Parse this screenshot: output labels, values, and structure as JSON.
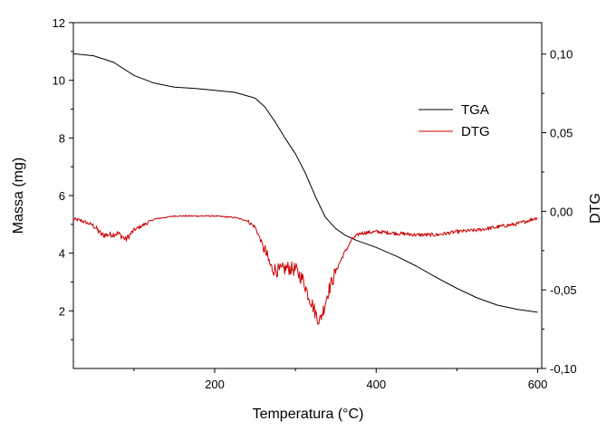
{
  "chart_data": {
    "type": "line",
    "title": "",
    "xlabel": "Temperatura (°C)",
    "ylabel_left": "Massa (mg)",
    "ylabel_right": "DTG",
    "xlim": [
      25,
      605
    ],
    "ylim_left": [
      0,
      12
    ],
    "ylim_right": [
      -0.1,
      0.12
    ],
    "x_ticks": [
      {
        "v": 200,
        "label": "200"
      },
      {
        "v": 400,
        "label": "400"
      },
      {
        "v": 600,
        "label": "600"
      }
    ],
    "x_minor_ticks": [
      100,
      300,
      500
    ],
    "y_left_ticks": [
      {
        "v": 2,
        "label": "2"
      },
      {
        "v": 4,
        "label": "4"
      },
      {
        "v": 6,
        "label": "6"
      },
      {
        "v": 8,
        "label": "8"
      },
      {
        "v": 10,
        "label": "10"
      },
      {
        "v": 12,
        "label": "12"
      }
    ],
    "y_right_ticks": [
      {
        "v": 0.1,
        "label": "0,10"
      },
      {
        "v": 0.05,
        "label": "0,05"
      },
      {
        "v": 0.0,
        "label": "0,00"
      },
      {
        "v": -0.05,
        "label": "-0,05"
      },
      {
        "v": -0.1,
        "label": "-0,10"
      }
    ],
    "legend_position": "upper-right",
    "series": [
      {
        "name": "TGA",
        "axis": "left",
        "color": "#000000",
        "x": [
          25,
          50,
          75,
          100,
          125,
          150,
          175,
          200,
          225,
          250,
          262,
          275,
          287,
          300,
          312,
          325,
          337,
          350,
          362,
          375,
          400,
          425,
          450,
          475,
          500,
          525,
          550,
          575,
          600
        ],
        "y": [
          10.92,
          10.85,
          10.62,
          10.17,
          9.9,
          9.76,
          9.72,
          9.65,
          9.58,
          9.38,
          9.08,
          8.55,
          8.0,
          7.45,
          6.8,
          5.95,
          5.25,
          4.85,
          4.62,
          4.45,
          4.2,
          3.9,
          3.55,
          3.15,
          2.78,
          2.45,
          2.2,
          2.05,
          1.95
        ]
      },
      {
        "name": "DTG",
        "axis": "right",
        "color": "#cc0000",
        "x": [
          25,
          35,
          50,
          60,
          70,
          80,
          90,
          100,
          125,
          150,
          175,
          200,
          225,
          240,
          250,
          260,
          270,
          280,
          290,
          300,
          310,
          315,
          320,
          325,
          330,
          335,
          340,
          350,
          360,
          370,
          380,
          400,
          425,
          450,
          475,
          500,
          525,
          550,
          575,
          600
        ],
        "y": [
          -0.005,
          -0.006,
          -0.009,
          -0.015,
          -0.015,
          -0.014,
          -0.018,
          -0.012,
          -0.005,
          -0.003,
          -0.003,
          -0.003,
          -0.004,
          -0.006,
          -0.01,
          -0.022,
          -0.036,
          -0.038,
          -0.036,
          -0.037,
          -0.044,
          -0.052,
          -0.058,
          -0.065,
          -0.07,
          -0.062,
          -0.052,
          -0.038,
          -0.027,
          -0.018,
          -0.014,
          -0.013,
          -0.014,
          -0.015,
          -0.015,
          -0.013,
          -0.012,
          -0.01,
          -0.008,
          -0.004
        ]
      }
    ]
  }
}
